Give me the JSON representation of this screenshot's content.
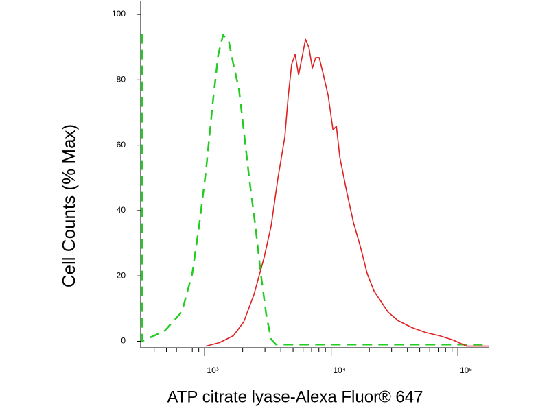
{
  "chart_data": {
    "type": "line",
    "x_label": "ATP citrate lyase-Alexa Fluor® 647",
    "y_label": "Cell Counts (% Max)",
    "xscale": "log",
    "xlim": [
      313,
      175000
    ],
    "ylim": [
      -2,
      104
    ],
    "xticks": [
      {
        "value": 1000,
        "label": "10³"
      },
      {
        "value": 10000,
        "label": "10⁴"
      },
      {
        "value": 100000,
        "label": "10⁵"
      }
    ],
    "xminorticks": [
      400,
      500,
      600,
      700,
      800,
      900,
      2000,
      3000,
      4000,
      5000,
      6000,
      7000,
      8000,
      9000,
      20000,
      30000,
      40000,
      50000,
      60000,
      70000,
      80000,
      90000
    ],
    "yticks": [
      0,
      20,
      40,
      60,
      80,
      100
    ],
    "series": [
      {
        "color": "#22cc22",
        "dashed": true,
        "x": [
          320,
          322,
          346,
          485,
          662,
          799,
          905,
          1025,
          1161,
          1283,
          1400,
          1549,
          1690,
          1866,
          2037,
          2250,
          2518,
          2781,
          3073,
          3357,
          3664,
          175000
        ],
        "values": [
          94,
          0,
          0.6,
          3.2,
          9.0,
          20.6,
          35.3,
          52.1,
          73.1,
          87.8,
          93.7,
          92.0,
          84.7,
          77.3,
          64.7,
          50.0,
          35.3,
          20.6,
          8.0,
          0.6,
          -1.0,
          -1.0
        ]
      },
      {
        "color": "#e02020",
        "dashed": false,
        "x": [
          1025,
          1316,
          1690,
          2037,
          2455,
          2962,
          3357,
          3802,
          4305,
          4581,
          4875,
          5188,
          5529,
          5885,
          6266,
          6670,
          7096,
          7551,
          8035,
          8551,
          9462,
          10330,
          10990,
          11700,
          13250,
          15000,
          16990,
          19270,
          21830,
          24720,
          27990,
          33740,
          43350,
          55590,
          71450,
          91620,
          117500,
          175000
        ],
        "values": [
          -1.5,
          -0.4,
          1.7,
          5.9,
          14.3,
          25.8,
          35.3,
          50.0,
          62.6,
          75.2,
          84.7,
          87.8,
          81.5,
          86.8,
          92.4,
          89.9,
          83.6,
          86.8,
          86.8,
          82.6,
          75.2,
          64.7,
          65.8,
          56.3,
          45.8,
          36.3,
          29.0,
          20.6,
          15.3,
          12.2,
          9.0,
          6.3,
          4.2,
          2.7,
          1.7,
          0.4,
          -1.5,
          -1.5
        ]
      }
    ]
  }
}
